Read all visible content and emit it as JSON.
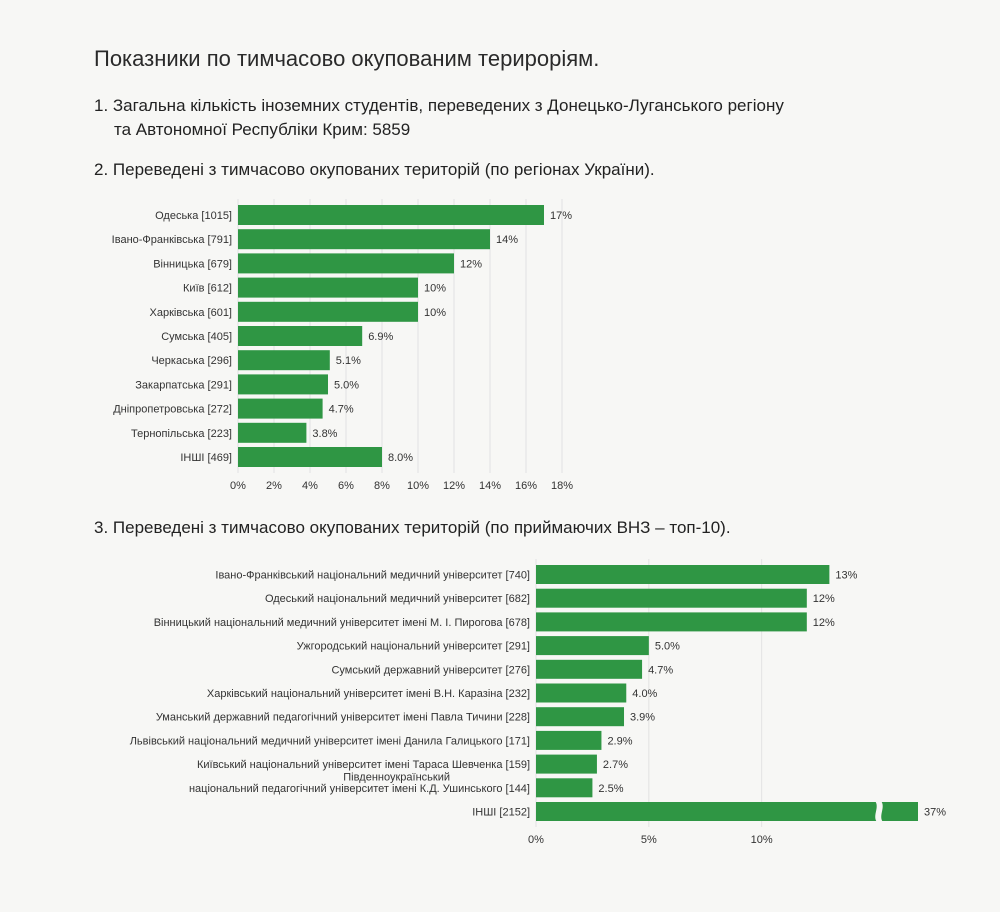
{
  "title": "Показники по тимчасово окупованим терирорiям.",
  "item1": {
    "line1": "1. Загальна кількість іноземних студентів, переведених з Донецько-Луганського регіону",
    "line2": "та Автономної  Республіки Крим: 5859"
  },
  "chart_data": [
    {
      "type": "bar",
      "orientation": "horizontal",
      "title": "2. Переведені з тимчасово окупованих територій (по регіонах України).",
      "categories": [
        "Одеська [1015]",
        "Івано-Франківська [791]",
        "Вінницька [679]",
        "Київ [612]",
        "Харківська [601]",
        "Сумська [405]",
        "Черкаська [296]",
        "Закарпатська [291]",
        "Дніпропетровська [272]",
        "Тернопільська [223]",
        "ІНШІ [469]"
      ],
      "values": [
        17,
        14,
        12,
        10,
        10,
        6.9,
        5.1,
        5.0,
        4.7,
        3.8,
        8.0
      ],
      "value_labels": [
        "17%",
        "14%",
        "12%",
        "10%",
        "10%",
        "6.9%",
        "5.1%",
        "5.0%",
        "4.7%",
        "3.8%",
        "8.0%"
      ],
      "xlim": [
        0,
        18
      ],
      "ticks": [
        "0%",
        "2%",
        "4%",
        "6%",
        "8%",
        "10%",
        "12%",
        "14%",
        "16%",
        "18%"
      ],
      "grid": true,
      "bar_color": "#2f9644"
    },
    {
      "type": "bar",
      "orientation": "horizontal",
      "title": "3. Переведені з тимчасово окупованих територій (по приймаючих ВНЗ – топ-10).",
      "categories": [
        "Івано-Франківський національний медичний університет [740]",
        "Одеський національний медичний університет [682]",
        "Вінницький національний медичний університет імені М. І. Пирогова [678]",
        "Ужгородський національний університет [291]",
        "Сумський державний університет [276]",
        "Харківський національний університет імені В.Н. Каразіна [232]",
        "Уманський державний педагогічний університет імені Павла Тичини [228]",
        "Львівський національний медичний університет імені Данила Галицького [171]",
        "Київський національний університет імені Тараса Шевченка [159]",
        "Південноукраїнський національний педагогічний університет імені К.Д. Ушинського [144]",
        "ІНШІ [2152]"
      ],
      "label_line1_9": "Південноукраїнський",
      "label_line2_9": "національний педагогічний університет імені К.Д. Ушинського [144]",
      "values": [
        13,
        12,
        12,
        5.0,
        4.7,
        4.0,
        3.9,
        2.9,
        2.7,
        2.5,
        37
      ],
      "value_labels": [
        "13%",
        "12%",
        "12%",
        "5.0%",
        "4.7%",
        "4.0%",
        "3.9%",
        "2.9%",
        "2.7%",
        "2.5%",
        "37%"
      ],
      "xlim": [
        0,
        14.8
      ],
      "axis_break": true,
      "ticks": [
        "0%",
        "5%",
        "10%"
      ],
      "grid": true,
      "bar_color": "#2f9644"
    }
  ]
}
